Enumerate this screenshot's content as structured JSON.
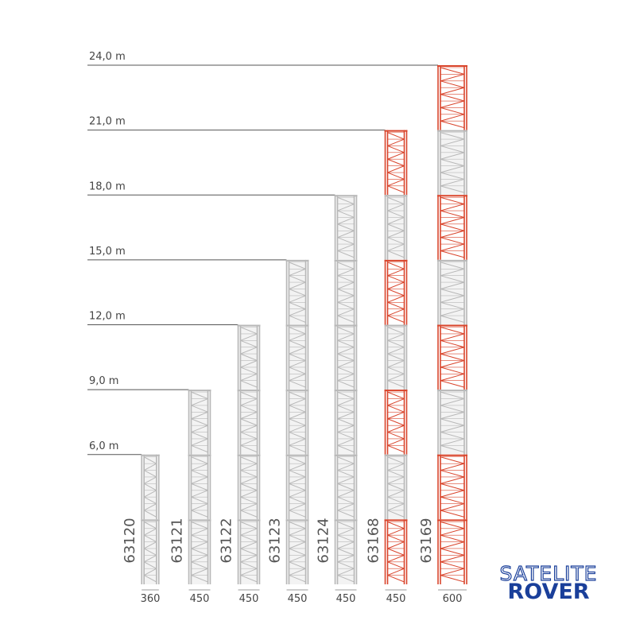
{
  "chart_data": {
    "type": "mast",
    "categories": [
      "63120",
      "63121",
      "63122",
      "63123",
      "63124",
      "63168",
      "63169"
    ],
    "values": [
      6,
      9,
      12,
      15,
      18,
      21,
      24
    ],
    "widths": [
      "360",
      "450",
      "450",
      "450",
      "450",
      "450",
      "600"
    ],
    "colors": [
      "#b8b8b8",
      "#b8b8b8",
      "#b8b8b8",
      "#b8b8b8",
      "#b8b8b8",
      "#d9442b",
      "#d9442b"
    ],
    "ylim": [
      0,
      24
    ],
    "yticks": [
      {
        "value": 6,
        "label": "6,0 m"
      },
      {
        "value": 9,
        "label": "9,0 m"
      },
      {
        "value": 12,
        "label": "12,0 m"
      },
      {
        "value": 15,
        "label": "15,0 m"
      },
      {
        "value": 18,
        "label": "18,0 m"
      },
      {
        "value": 21,
        "label": "21,0 m"
      },
      {
        "value": 24,
        "label": "24,0 m"
      }
    ]
  },
  "logo": {
    "top": "SATELITE",
    "bottom": "ROVER"
  }
}
